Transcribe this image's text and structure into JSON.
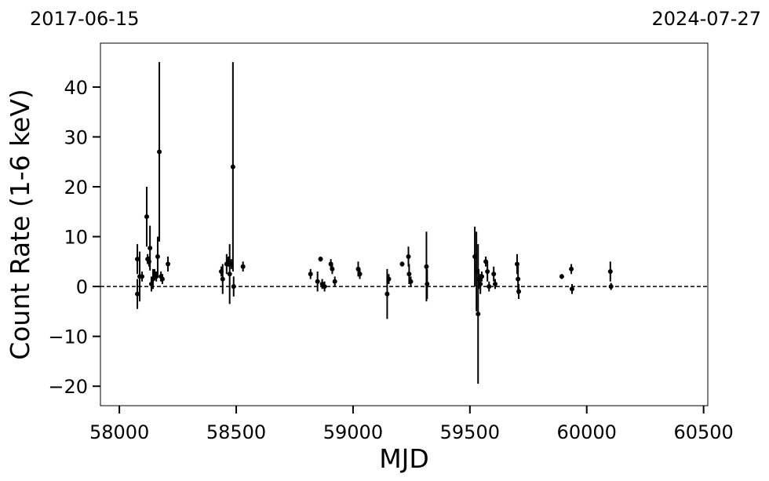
{
  "chart_data": {
    "type": "scatter",
    "annotations": [
      "2017-06-15",
      "2024-07-27"
    ],
    "xlabel": "MJD",
    "ylabel": "Count Rate (1-6 keV)",
    "xlim": [
      57919,
      60518
    ],
    "ylim": [
      -23.9,
      48.8
    ],
    "xticks": [
      58000,
      58500,
      59000,
      59500,
      60000,
      60500
    ],
    "yticks": [
      {
        "value": -20,
        "label": "−20"
      },
      {
        "value": -10,
        "label": "−10"
      },
      0,
      10,
      20,
      30,
      40
    ],
    "hline": 0,
    "color": "#000000",
    "x": [
      58077,
      58077,
      58087,
      58097,
      58117,
      58121,
      58127,
      58131,
      58137,
      58144,
      58151,
      58158,
      58164,
      58171,
      58178,
      58184,
      58208,
      58436,
      58442,
      58459,
      58466,
      58472,
      58479,
      58486,
      58489,
      58529,
      58818,
      58848,
      58861,
      58868,
      58878,
      58905,
      58911,
      58922,
      59022,
      59029,
      59146,
      59153,
      59210,
      59237,
      59240,
      59247,
      59314,
      59317,
      59521,
      59528,
      59535,
      59538,
      59545,
      59551,
      59568,
      59575,
      59582,
      59602,
      59608,
      59702,
      59706,
      59709,
      59893,
      59934,
      59937,
      60101,
      60104
    ],
    "values": [
      5.5,
      -1.5,
      2,
      2,
      14,
      5.5,
      5,
      7.7,
      0.5,
      1.5,
      2.5,
      2,
      6,
      27,
      2,
      1.5,
      4.5,
      3,
      1.5,
      4.5,
      5,
      2.5,
      4.5,
      24,
      0,
      4,
      2.5,
      1,
      5.5,
      0.5,
      0,
      4.5,
      3.5,
      1,
      3.5,
      2.5,
      -1.5,
      1.5,
      4.5,
      6,
      2.5,
      1,
      4,
      0.5,
      6,
      3,
      -5.5,
      1.5,
      0.5,
      2,
      5,
      3,
      0,
      2.5,
      0.5,
      4.5,
      1.5,
      -1,
      2,
      3.5,
      -0.5,
      3,
      0
    ],
    "errors": [
      3,
      3,
      5,
      1,
      6,
      1,
      1,
      4.5,
      1.5,
      2,
      1,
      1,
      4,
      18,
      1,
      1,
      1.5,
      1,
      3,
      2,
      1,
      6,
      1,
      21,
      2,
      1,
      1,
      2,
      0.5,
      1,
      1,
      1,
      1,
      1,
      1.5,
      1,
      5,
      1,
      0.5,
      2,
      2,
      1,
      7,
      3,
      6,
      8,
      14,
      2,
      2,
      1,
      1,
      2,
      1,
      1.5,
      1,
      2,
      3,
      1.5,
      0.5,
      1,
      1,
      2,
      0.7
    ]
  }
}
